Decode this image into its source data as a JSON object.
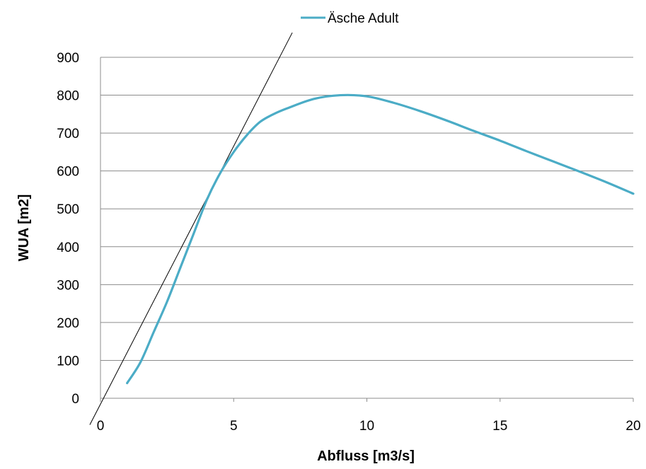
{
  "chart_data": {
    "type": "line",
    "title": "",
    "xlabel": "Abfluss [m3/s]",
    "ylabel": "WUA [m2]",
    "xlim": [
      0,
      20
    ],
    "ylim": [
      0,
      900
    ],
    "x_ticks": [
      0,
      5,
      10,
      15,
      20
    ],
    "y_ticks": [
      0,
      100,
      200,
      300,
      400,
      500,
      600,
      700,
      800,
      900
    ],
    "grid": "horizontal",
    "legend_position": "top",
    "series": [
      {
        "name": "Äsche Adult",
        "color": "#4BACC6",
        "x": [
          1.0,
          1.5,
          2.0,
          2.5,
          3.0,
          3.5,
          4.0,
          4.5,
          5.0,
          5.5,
          6.0,
          6.5,
          7.0,
          8.0,
          9.0,
          10.0,
          11.0,
          12.0,
          13.0,
          14.0,
          15.0,
          16.0,
          17.0,
          18.0,
          19.0,
          20.0
        ],
        "y": [
          40,
          95,
          175,
          255,
          345,
          435,
          525,
          595,
          650,
          695,
          730,
          750,
          765,
          790,
          800,
          797,
          780,
          758,
          733,
          706,
          680,
          652,
          625,
          598,
          570,
          540
        ]
      }
    ],
    "annotations": [
      {
        "type": "reference-line",
        "color": "#000000",
        "x": [
          -0.4,
          7.2
        ],
        "y": [
          -70,
          965
        ]
      }
    ]
  }
}
